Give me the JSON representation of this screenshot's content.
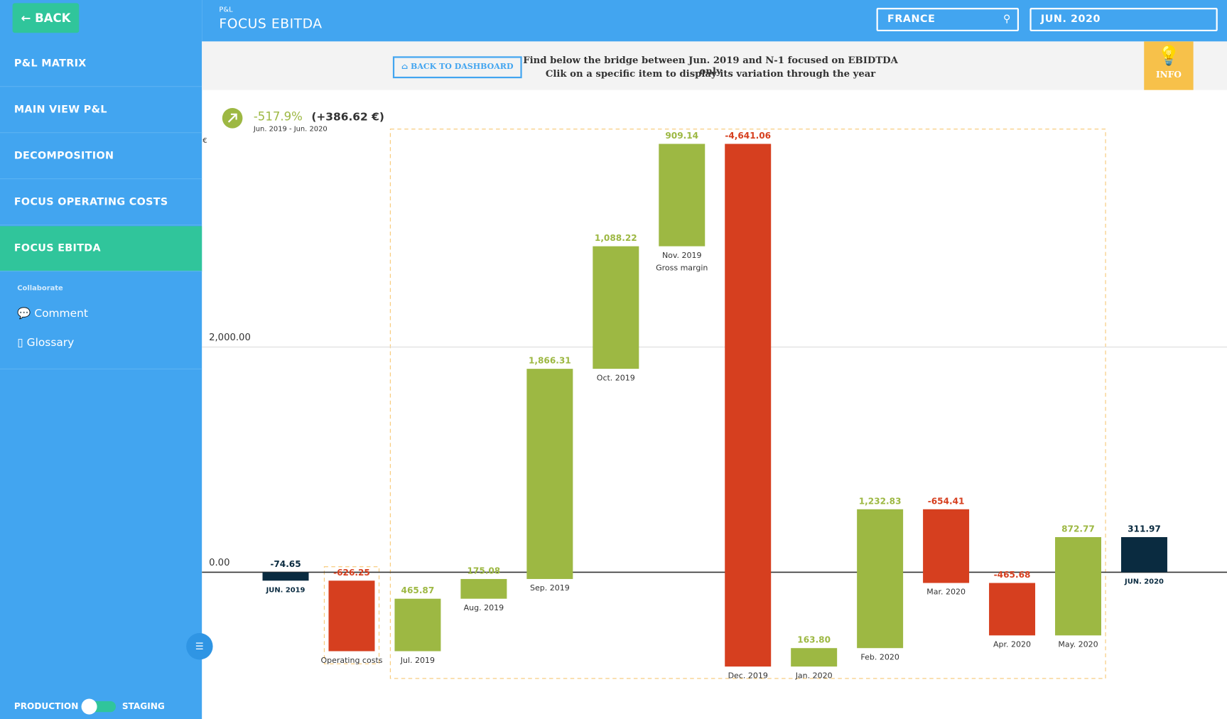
{
  "sidebar": {
    "back": "BACK",
    "menu": [
      "P&L MATRIX",
      "MAIN VIEW P&L",
      "DECOMPOSITION",
      "FOCUS OPERATING COSTS",
      "FOCUS EBITDA"
    ],
    "collaborate": "Collaborate",
    "links": [
      "Comment",
      "Glossary"
    ],
    "toggle": [
      "PRODUCTION",
      "STAGING"
    ]
  },
  "header": {
    "section": "P&L",
    "title": "FOCUS EBITDA",
    "country": "FRANCE",
    "period": "JUN. 2020"
  },
  "info_bar": {
    "button": "BACK TO DASHBOARD",
    "lines": [
      "Find below the bridge between Jun. 2019 and N-1 focused on EBIDTDA only",
      "Clik on a specific item to display its variation through the year"
    ],
    "badge": "INFO"
  },
  "summary": {
    "change_pct": "-517.9%",
    "change_abs": "(+386.62 €)",
    "period": "Jun. 2019 - Jun. 2020"
  },
  "chart_data": {
    "type": "waterfall",
    "y_unit": "€",
    "categories": [
      "JUN. 2019",
      "Operating costs",
      "Jul. 2019",
      "Aug. 2019",
      "Sep. 2019",
      "Oct. 2019",
      "Nov. 2019",
      "Dec. 2019",
      "Jan. 2020",
      "Feb. 2020",
      "Mar. 2020",
      "Apr. 2020",
      "May. 2020",
      "JUN. 2020"
    ],
    "values": [
      -74.65,
      -626.25,
      465.87,
      175.08,
      1866.31,
      1088.22,
      909.14,
      -4641.06,
      163.8,
      1232.83,
      -654.41,
      -465.68,
      872.77,
      311.97
    ],
    "value_labels": [
      "-74.65",
      "-626.25",
      "465.87",
      "175.08",
      "1,866.31",
      "1,088.22",
      "909.14",
      "-4,641.06",
      "163.80",
      "1,232.83",
      "-654.41",
      "-465.68",
      "872.77",
      "311.97"
    ],
    "group_label": "Gross margin",
    "total_color": "#0a2b40",
    "increase_color": "#9db843",
    "decrease_color": "#d63f1f",
    "ylim": [
      -1200,
      3900
    ],
    "yticks": [
      {
        "value": 0,
        "label": "0.00"
      },
      {
        "value": 2000,
        "label": "2,000.00"
      }
    ]
  }
}
